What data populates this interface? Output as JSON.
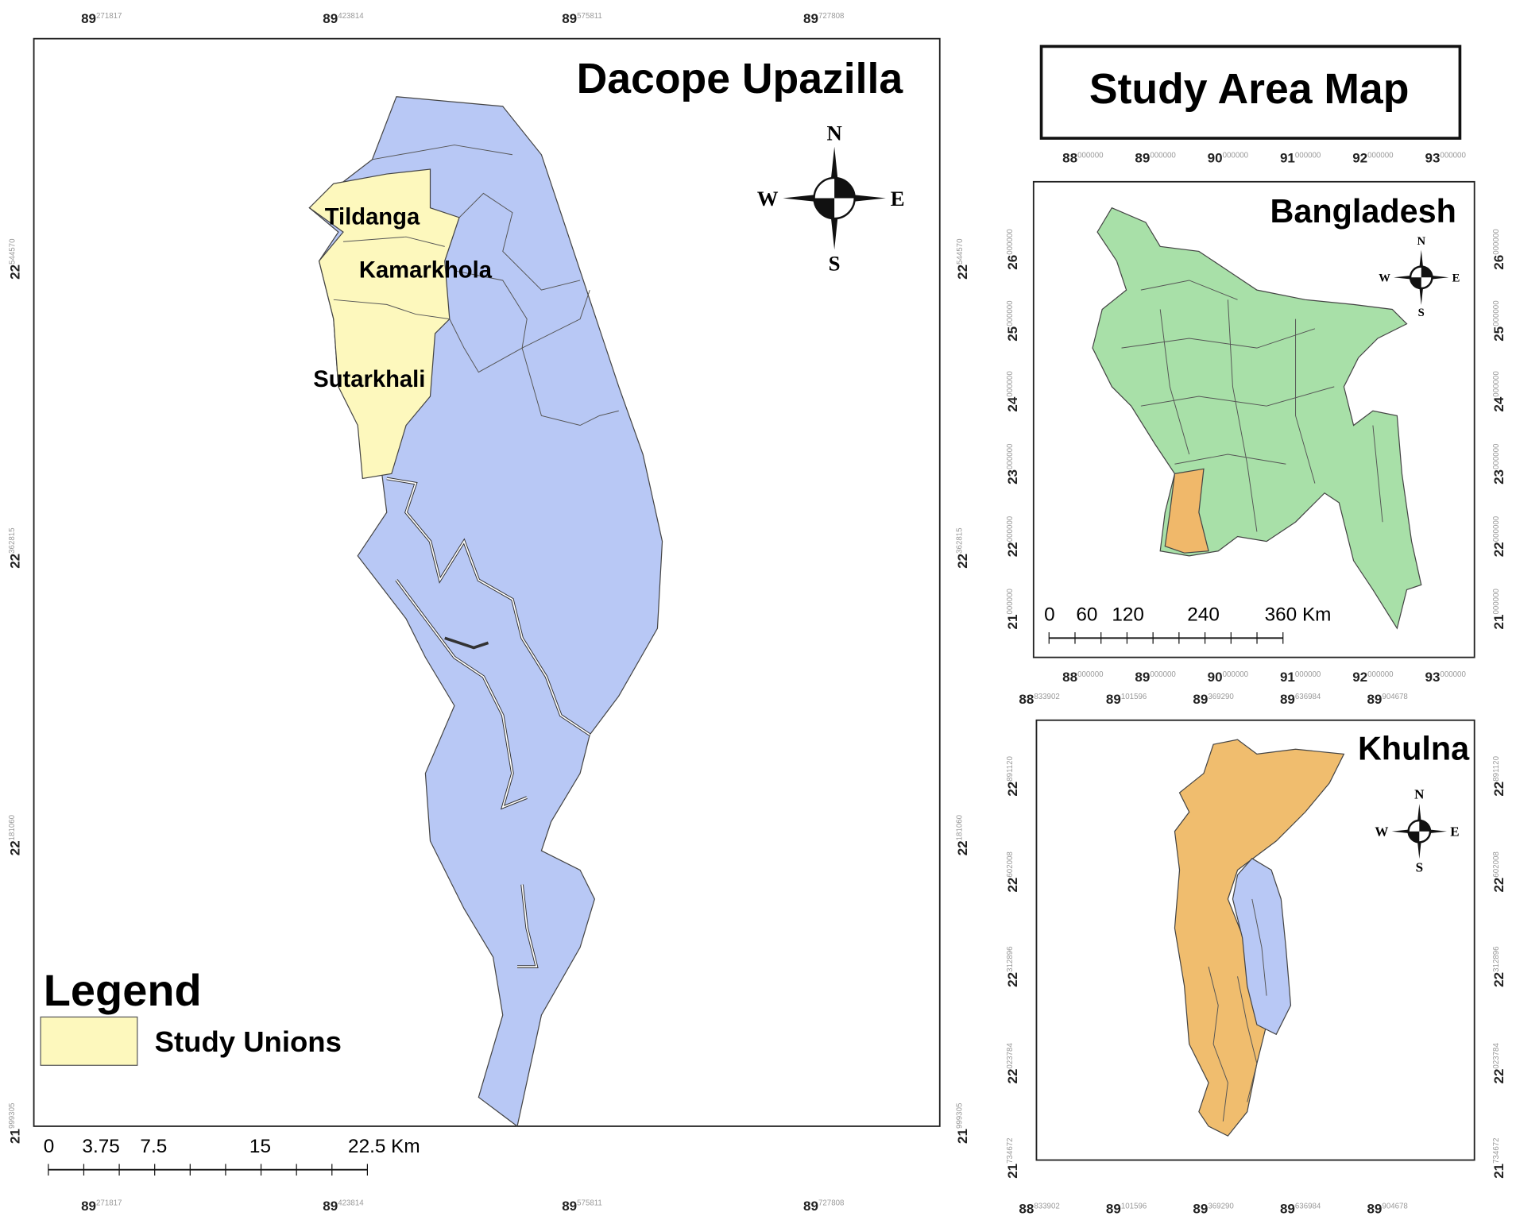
{
  "main_map": {
    "title": "Dacope Upazilla",
    "unions": [
      "Tildanga",
      "Kamarkhola",
      "Sutarkhali"
    ],
    "compass": {
      "n": "N",
      "s": "S",
      "e": "E",
      "w": "W"
    },
    "legend": {
      "title": "Legend",
      "items": [
        "Study Unions"
      ]
    },
    "scale_bar": [
      "0",
      "3.75",
      "7.5",
      "15",
      "22.5 Km"
    ],
    "x_coords": [
      {
        "deg": "89",
        "min": "271817"
      },
      {
        "deg": "89",
        "min": "423814"
      },
      {
        "deg": "89",
        "min": "575811"
      },
      {
        "deg": "89",
        "min": "727808"
      }
    ],
    "y_coords": [
      {
        "deg": "22",
        "min": "544570"
      },
      {
        "deg": "22",
        "min": "362815"
      },
      {
        "deg": "22",
        "min": "181060"
      },
      {
        "deg": "21",
        "min": "999305"
      }
    ]
  },
  "title_box": {
    "title": "Study Area Map"
  },
  "bangladesh_map": {
    "title": "Bangladesh",
    "compass": {
      "n": "N",
      "s": "S",
      "e": "E",
      "w": "W"
    },
    "scale_bar": [
      "0",
      "60",
      "120",
      "240",
      "360 Km"
    ],
    "x_coords": [
      {
        "deg": "88",
        "min": "000000"
      },
      {
        "deg": "89",
        "min": "000000"
      },
      {
        "deg": "90",
        "min": "000000"
      },
      {
        "deg": "91",
        "min": "000000"
      },
      {
        "deg": "92",
        "min": "000000"
      },
      {
        "deg": "93",
        "min": "000000"
      }
    ],
    "y_coords": [
      {
        "deg": "26",
        "min": "000000"
      },
      {
        "deg": "25",
        "min": "000000"
      },
      {
        "deg": "24",
        "min": "000000"
      },
      {
        "deg": "23",
        "min": "000000"
      },
      {
        "deg": "22",
        "min": "000000"
      },
      {
        "deg": "21",
        "min": "000000"
      }
    ]
  },
  "khulna_map": {
    "title": "Khulna",
    "compass": {
      "n": "N",
      "s": "S",
      "e": "E",
      "w": "W"
    },
    "x_coords": [
      {
        "deg": "88",
        "min": "833902"
      },
      {
        "deg": "89",
        "min": "101596"
      },
      {
        "deg": "89",
        "min": "369290"
      },
      {
        "deg": "89",
        "min": "636984"
      },
      {
        "deg": "89",
        "min": "904678"
      }
    ],
    "y_coords": [
      {
        "deg": "22",
        "min": "891120"
      },
      {
        "deg": "22",
        "min": "602008"
      },
      {
        "deg": "22",
        "min": "312896"
      },
      {
        "deg": "22",
        "min": "023784"
      },
      {
        "deg": "21",
        "min": "734672"
      }
    ]
  }
}
